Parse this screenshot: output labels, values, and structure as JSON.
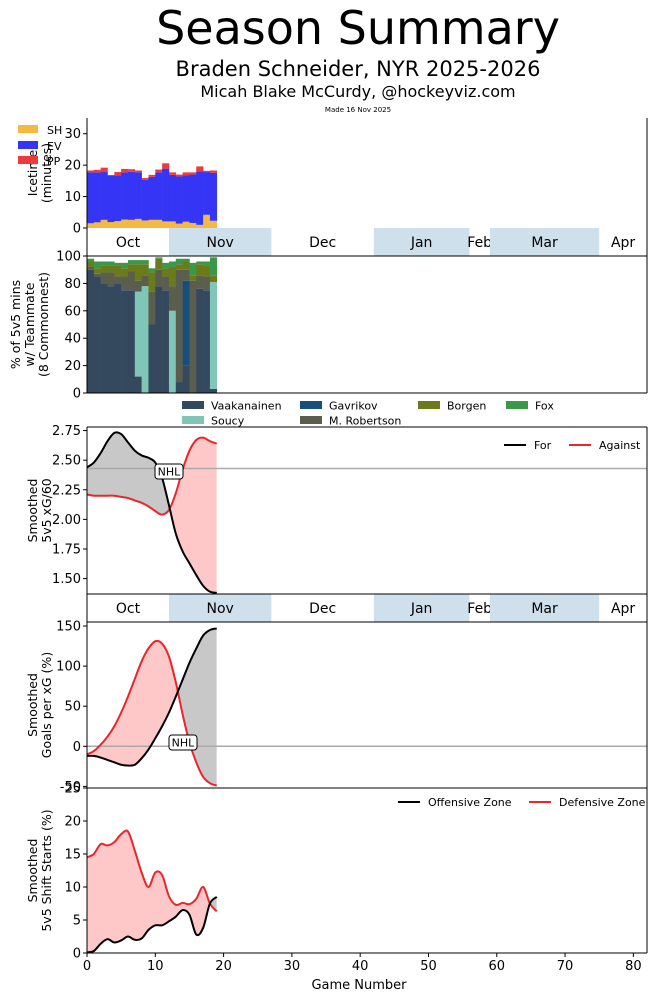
{
  "header": {
    "title": "Season Summary",
    "subtitle": "Braden Schneider, NYR 2025-2026",
    "author": "Micah Blake McCurdy, @hockeyviz.com",
    "made": "Made 16 Nov 2025"
  },
  "months": [
    "Oct",
    "Nov",
    "Dec",
    "Jan",
    "Feb",
    "Mar",
    "Apr"
  ],
  "colors": {
    "sh": "#f5b942",
    "ev": "#3535f5",
    "pp": "#ee3a3a",
    "for": "#000000",
    "against": "#e8262b",
    "shade_for": "#c8c8c8",
    "shade_against": "#ffc8c8",
    "month_band": "#cfe0ed",
    "nhl_line": "#aaaaaa"
  },
  "chart_data": [
    {
      "type": "bar",
      "ylabel": "Icetime\n(minutes)",
      "ylim": [
        0,
        35
      ],
      "yticks": [
        0,
        10,
        20,
        30
      ],
      "games": [
        1,
        2,
        3,
        4,
        5,
        6,
        7,
        8,
        9,
        10,
        11,
        12,
        13,
        14,
        15,
        16,
        17,
        18,
        19
      ],
      "series": [
        {
          "name": "SH",
          "values": [
            1.5,
            1.8,
            2.6,
            1.9,
            2.2,
            2.7,
            2.6,
            2.9,
            2.4,
            2.6,
            2.6,
            2.1,
            2.1,
            1.4,
            2.0,
            1.6,
            1.0,
            4.2,
            2.3
          ]
        },
        {
          "name": "EV",
          "values": [
            16.2,
            15.9,
            15.2,
            14.9,
            14.6,
            15.0,
            15.3,
            14.8,
            12.9,
            13.7,
            15.1,
            16.8,
            14.8,
            15.0,
            14.7,
            15.4,
            17.0,
            13.6,
            15.3
          ]
        },
        {
          "name": "PP",
          "values": [
            0.6,
            0.8,
            1.4,
            0.0,
            1.0,
            1.1,
            0.8,
            0.6,
            0.6,
            0.6,
            0.9,
            1.7,
            0.8,
            0.6,
            1.0,
            0.7,
            1.6,
            0.4,
            0.7
          ]
        }
      ]
    },
    {
      "type": "bar",
      "ylabel": "% of 5v5 mins\nw/ Teammate\n(8 Commonnest)",
      "ylim": [
        0,
        100
      ],
      "yticks": [
        0,
        20,
        40,
        60,
        80,
        100
      ],
      "games": [
        1,
        2,
        3,
        4,
        5,
        6,
        7,
        8,
        9,
        10,
        11,
        12,
        13,
        14,
        15,
        16,
        17,
        18,
        19
      ],
      "series": [
        {
          "name": "Vaakanainen",
          "values": [
            90,
            85,
            80,
            78,
            80,
            75,
            75,
            12,
            0,
            50,
            78,
            75,
            0,
            8,
            20,
            0,
            76,
            75,
            3
          ]
        },
        {
          "name": "Soucy",
          "values": [
            0,
            0,
            0,
            0,
            0,
            0,
            0,
            62,
            78,
            0,
            0,
            0,
            60,
            0,
            0,
            0,
            0,
            0,
            78
          ]
        },
        {
          "name": "Gavrikov",
          "values": [
            0,
            0,
            0,
            0,
            0,
            0,
            0,
            0,
            0,
            0,
            0,
            0,
            0,
            0,
            62,
            0,
            0,
            0,
            0
          ]
        },
        {
          "name": "M. Robertson",
          "values": [
            2,
            2,
            8,
            10,
            5,
            10,
            14,
            8,
            8,
            24,
            12,
            10,
            18,
            82,
            8,
            82,
            10,
            10,
            0
          ]
        },
        {
          "name": "Borgen",
          "values": [
            4,
            4,
            5,
            5,
            8,
            6,
            5,
            12,
            8,
            14,
            8,
            6,
            14,
            4,
            6,
            4,
            8,
            8,
            5
          ]
        },
        {
          "name": "Fox",
          "values": [
            2,
            5,
            3,
            3,
            2,
            4,
            3,
            3,
            3,
            3,
            1,
            4,
            4,
            4,
            2,
            9,
            2,
            3,
            13
          ]
        }
      ]
    },
    {
      "type": "line",
      "ylabel": "Smoothed\n5v5 xG/60",
      "ylim": [
        1.37,
        2.78
      ],
      "yticks": [
        1.5,
        1.75,
        2.0,
        2.25,
        2.5,
        2.75
      ],
      "nhl_value": 2.43,
      "nhl_label": "NHL",
      "series": [
        {
          "name": "For",
          "x": [
            0,
            1,
            2,
            3,
            4,
            5,
            6,
            7,
            8,
            9,
            10,
            11,
            12,
            13,
            14,
            15,
            16,
            17,
            18,
            19
          ],
          "values": [
            2.44,
            2.48,
            2.56,
            2.66,
            2.73,
            2.72,
            2.65,
            2.58,
            2.54,
            2.52,
            2.48,
            2.35,
            2.12,
            1.88,
            1.73,
            1.63,
            1.53,
            1.44,
            1.39,
            1.38
          ]
        },
        {
          "name": "Against",
          "x": [
            0,
            1,
            2,
            3,
            4,
            5,
            6,
            7,
            8,
            9,
            10,
            11,
            12,
            13,
            14,
            15,
            16,
            17,
            18,
            19
          ],
          "values": [
            2.21,
            2.2,
            2.2,
            2.2,
            2.2,
            2.19,
            2.18,
            2.16,
            2.14,
            2.11,
            2.07,
            2.04,
            2.08,
            2.22,
            2.42,
            2.58,
            2.67,
            2.69,
            2.66,
            2.64
          ]
        }
      ]
    },
    {
      "type": "line",
      "ylabel": "Smoothed\nGoals per xG (%)",
      "ylim": [
        -52,
        155
      ],
      "yticks": [
        -50,
        0,
        50,
        100,
        150
      ],
      "nhl_value": 0,
      "nhl_label": "NHL",
      "series": [
        {
          "name": "For",
          "x": [
            0,
            1,
            2,
            3,
            4,
            5,
            6,
            7,
            8,
            9,
            10,
            11,
            12,
            13,
            14,
            15,
            16,
            17,
            18,
            19
          ],
          "values": [
            -12,
            -12,
            -14,
            -17,
            -20,
            -23,
            -24,
            -23,
            -15,
            -4,
            10,
            25,
            42,
            62,
            83,
            104,
            122,
            138,
            145,
            147
          ]
        },
        {
          "name": "Against",
          "x": [
            0,
            1,
            2,
            3,
            4,
            5,
            6,
            7,
            8,
            9,
            10,
            11,
            12,
            13,
            14,
            15,
            16,
            17,
            18,
            19
          ],
          "values": [
            -10,
            -6,
            2,
            12,
            25,
            42,
            62,
            84,
            106,
            122,
            131,
            128,
            112,
            80,
            40,
            5,
            -20,
            -38,
            -46,
            -49
          ]
        }
      ]
    },
    {
      "type": "line",
      "ylabel": "Smoothed\n5v5 Shift Starts (%)",
      "xlabel": "Game Number",
      "ylim": [
        0,
        25
      ],
      "yticks": [
        0,
        5,
        10,
        15,
        20,
        25
      ],
      "xticks": [
        0,
        10,
        20,
        30,
        40,
        50,
        60,
        70,
        80
      ],
      "series": [
        {
          "name": "Offensive Zone",
          "x": [
            0,
            1,
            2,
            3,
            4,
            5,
            6,
            7,
            8,
            9,
            10,
            11,
            12,
            13,
            14,
            15,
            16,
            17,
            18,
            19
          ],
          "values": [
            0.1,
            0.3,
            1.4,
            2.1,
            1.6,
            1.9,
            2.5,
            2.0,
            2.2,
            3.5,
            4.2,
            4.2,
            4.8,
            5.5,
            6.5,
            5.8,
            2.8,
            3.8,
            7.5,
            8.5
          ]
        },
        {
          "name": "Defensive Zone",
          "x": [
            0,
            1,
            2,
            3,
            4,
            5,
            6,
            7,
            8,
            9,
            10,
            11,
            12,
            13,
            14,
            15,
            16,
            17,
            18,
            19
          ],
          "values": [
            14.5,
            15.0,
            16.5,
            16.3,
            16.8,
            18.0,
            18.4,
            15.5,
            12.2,
            10.0,
            12.2,
            11.8,
            8.6,
            7.3,
            7.6,
            7.4,
            8.2,
            10.0,
            7.5,
            6.3
          ]
        }
      ]
    }
  ],
  "legend_teammates": [
    "Vaakanainen",
    "Gavrikov",
    "Borgen",
    "Fox",
    "Soucy",
    "M. Robertson"
  ],
  "teammate_colors": {
    "Vaakanainen": "#34495e",
    "Soucy": "#80c6b6",
    "Gavrikov": "#184e7c",
    "M. Robertson": "#5b5e4d",
    "Borgen": "#6b7a1b",
    "Fox": "#3a9948"
  }
}
